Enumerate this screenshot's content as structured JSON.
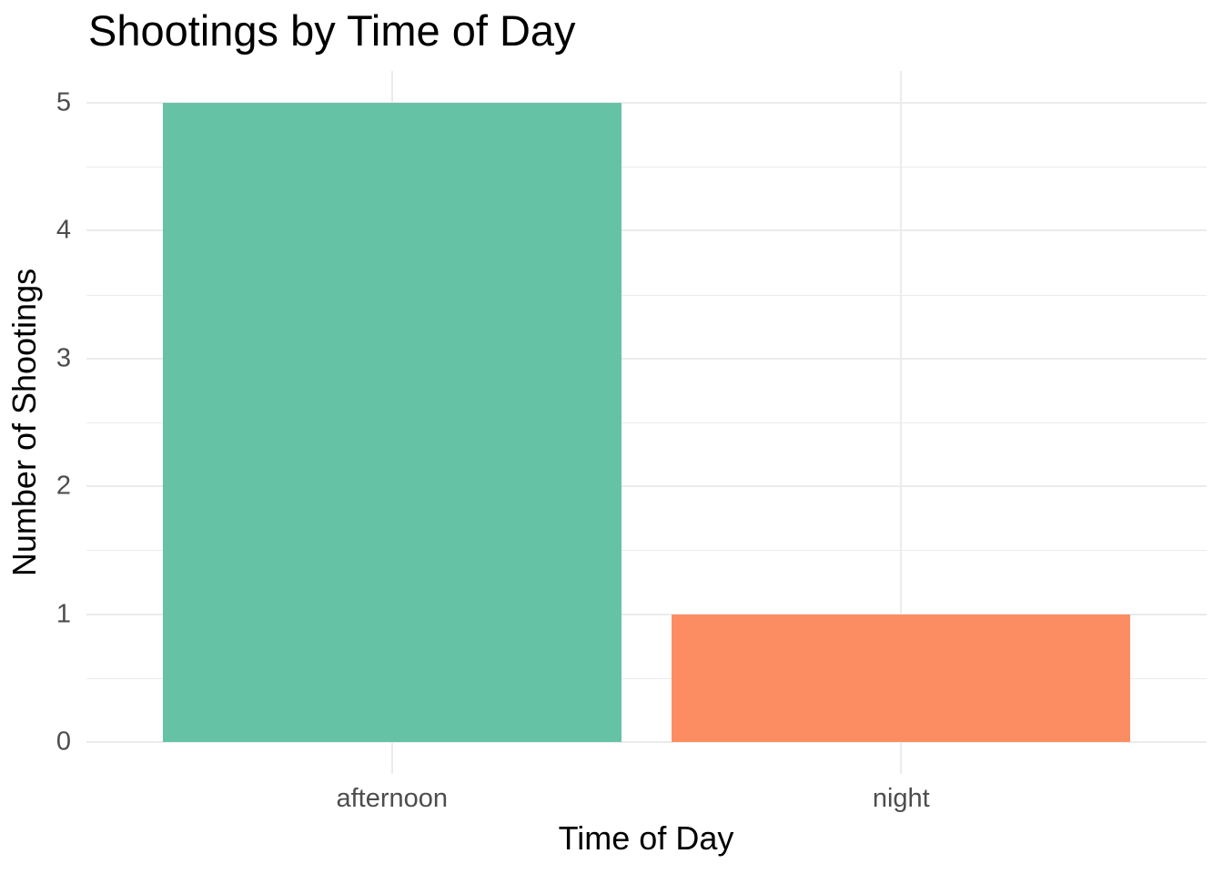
{
  "chart_data": {
    "type": "bar",
    "title": "Shootings by Time of Day",
    "xlabel": "Time of Day",
    "ylabel": "Number of Shootings",
    "categories": [
      "afternoon",
      "night"
    ],
    "values": [
      5,
      1
    ],
    "bar_colors": [
      "#66C2A5",
      "#FC8D62"
    ],
    "y_ticks": [
      0,
      1,
      2,
      3,
      4,
      5
    ],
    "ylim": [
      0,
      5
    ],
    "grid": "major-and-minor-horizontal, major-vertical",
    "legend_position": "none",
    "background_color": "#FFFFFF",
    "grid_color": "#EBEBEB",
    "tick_label_color": "#4D4D4D",
    "title_color": "#000000",
    "axis_title_color": "#000000"
  }
}
